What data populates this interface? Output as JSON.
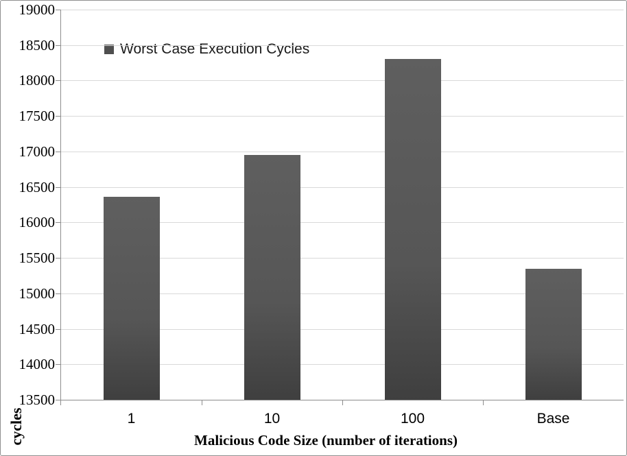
{
  "chart_data": {
    "type": "bar",
    "title": "",
    "categories": [
      "1",
      "10",
      "100",
      "Base"
    ],
    "series": [
      {
        "name": "Worst Case Execution Cycles",
        "values": [
          16360,
          16950,
          18300,
          15350
        ]
      }
    ],
    "xlabel": "Malicious Code Size (number of iterations)",
    "ylabel": "cycles",
    "ylim": [
      13500,
      19000
    ],
    "ytick_step": 500,
    "yticks": [
      13500,
      14000,
      14500,
      15000,
      15500,
      16000,
      16500,
      17000,
      17500,
      18000,
      18500,
      19000
    ],
    "grid": true,
    "legend": {
      "label": "Worst Case Execution Cycles",
      "position": "top-left-inside"
    }
  },
  "colors": {
    "bar_top": "#5f5f5f",
    "bar_mid": "#565656",
    "bar_bottom": "#3f3f3f",
    "legend_swatch": "#4f4f4f",
    "gridline": "#d9d9d9",
    "axis": "#8c8c8c",
    "border": "#8f8f8f",
    "text": "#000000"
  }
}
